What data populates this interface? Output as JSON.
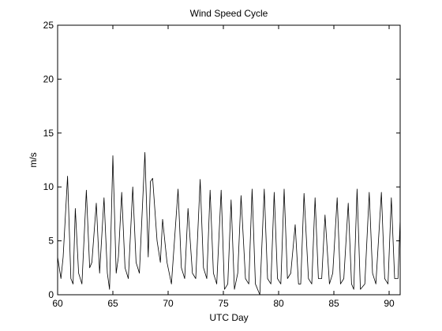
{
  "chart_data": {
    "type": "line",
    "title": "Wind Speed Cycle",
    "xlabel": "UTC Day",
    "ylabel": "m/s",
    "xlim": [
      60,
      91
    ],
    "ylim": [
      0,
      25
    ],
    "xticks": [
      60,
      65,
      70,
      75,
      80,
      85,
      90
    ],
    "yticks": [
      0,
      5,
      10,
      15,
      20,
      25
    ],
    "grid": false,
    "x": [
      60,
      60.3,
      60.5,
      60.9,
      61.2,
      61.4,
      61.6,
      61.9,
      62.2,
      62.6,
      62.9,
      63.1,
      63.5,
      63.8,
      64.0,
      64.2,
      64.5,
      64.7,
      65.0,
      65.3,
      65.5,
      65.8,
      66.1,
      66.4,
      66.8,
      67.1,
      67.4,
      67.9,
      68.2,
      68.4,
      68.6,
      69.0,
      69.3,
      69.5,
      69.9,
      70.3,
      70.9,
      71.2,
      71.5,
      71.8,
      72.2,
      72.5,
      72.9,
      73.2,
      73.5,
      73.8,
      74.1,
      74.4,
      74.8,
      75.1,
      75.4,
      75.7,
      76.0,
      76.3,
      76.6,
      77.0,
      77.3,
      77.6,
      77.9,
      78.3,
      78.7,
      79.0,
      79.3,
      79.6,
      79.9,
      80.2,
      80.5,
      80.8,
      81.1,
      81.5,
      81.8,
      82.0,
      82.3,
      82.7,
      83.0,
      83.3,
      83.6,
      83.9,
      84.2,
      84.6,
      84.9,
      85.3,
      85.6,
      85.9,
      86.3,
      86.6,
      86.8,
      87.1,
      87.4,
      87.8,
      88.2,
      88.5,
      88.8,
      89.3,
      89.6,
      89.9,
      90.2,
      90.5,
      90.8,
      91.0
    ],
    "series": [
      {
        "color": "#000000",
        "values": [
          3.5,
          1.5,
          3.5,
          11,
          1.5,
          1,
          8,
          2,
          1,
          9.7,
          2.5,
          3,
          8.5,
          2,
          5.5,
          9,
          2,
          0.5,
          12.9,
          2,
          3.5,
          9.5,
          2.5,
          1.5,
          10,
          3,
          2,
          13.2,
          3.5,
          10.5,
          10.8,
          5,
          3,
          7,
          3,
          1,
          9.8,
          2.5,
          1.5,
          8,
          2,
          1.5,
          10.7,
          2.5,
          1.5,
          9.7,
          2,
          1,
          9.7,
          0.5,
          1,
          8.8,
          0.5,
          2,
          9.2,
          1.5,
          1,
          9.8,
          1,
          0,
          9.8,
          1.5,
          1,
          9.5,
          1.5,
          1,
          9.8,
          1.5,
          2,
          6.5,
          1,
          1,
          9.4,
          1.5,
          1,
          9,
          1.5,
          1.5,
          7.4,
          1,
          2,
          9,
          1,
          1.5,
          8.5,
          1,
          0.5,
          9.8,
          0.5,
          1,
          9.5,
          2,
          1,
          9.5,
          1.5,
          1,
          9,
          1.5,
          1.5,
          7
        ]
      }
    ]
  }
}
